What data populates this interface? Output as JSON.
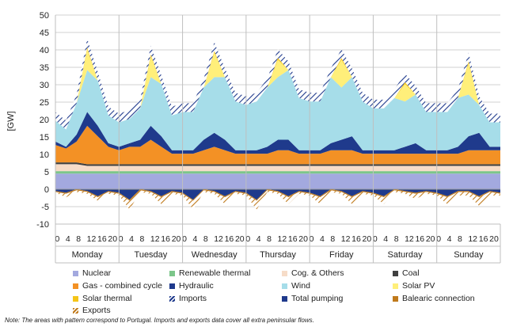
{
  "chart_data": {
    "type": "area",
    "ylabel": "[GW]",
    "ylim": [
      -10,
      50
    ],
    "yticks": [
      -10,
      -5,
      0,
      5,
      10,
      15,
      20,
      25,
      30,
      35,
      40,
      45,
      50
    ],
    "grid": true,
    "legend_position": "bottom",
    "days": [
      "Monday",
      "Tuesday",
      "Wednesday",
      "Thursday",
      "Friday",
      "Saturday",
      "Sunday"
    ],
    "hour_labels": [
      "0",
      "4",
      "8",
      "12",
      "16",
      "20"
    ],
    "x": [
      0,
      4,
      8,
      12,
      16,
      20,
      24,
      28,
      32,
      36,
      40,
      44,
      48,
      52,
      56,
      60,
      64,
      68,
      72,
      76,
      80,
      84,
      88,
      92,
      96,
      100,
      104,
      108,
      112,
      116,
      120,
      124,
      128,
      132,
      136,
      140,
      144,
      148,
      152,
      156,
      160,
      164,
      168
    ],
    "series": [
      {
        "name": "Nuclear",
        "color": "#a3a9df",
        "values": [
          4.5,
          4.5,
          4.5,
          4.5,
          4.5,
          4.5,
          4.5,
          4.5,
          4.5,
          4.5,
          4.5,
          4.5,
          4.5,
          4.5,
          4.5,
          4.5,
          4.5,
          4.5,
          4.5,
          4.5,
          4.5,
          4.5,
          4.5,
          4.5,
          4.5,
          4.5,
          4.5,
          4.5,
          4.5,
          4.5,
          4.5,
          4.5,
          4.5,
          4.5,
          4.5,
          4.5,
          4.5,
          4.5,
          4.5,
          4.5,
          4.5,
          4.5,
          4.5
        ]
      },
      {
        "name": "Renewable thermal",
        "color": "#7cc68a",
        "values": [
          0.7,
          0.7,
          0.7,
          0.7,
          0.7,
          0.7,
          0.7,
          0.7,
          0.7,
          0.7,
          0.7,
          0.7,
          0.7,
          0.7,
          0.7,
          0.7,
          0.7,
          0.7,
          0.7,
          0.7,
          0.7,
          0.7,
          0.7,
          0.7,
          0.7,
          0.7,
          0.7,
          0.7,
          0.7,
          0.7,
          0.7,
          0.7,
          0.7,
          0.7,
          0.7,
          0.7,
          0.7,
          0.7,
          0.7,
          0.7,
          0.7,
          0.7,
          0.7
        ]
      },
      {
        "name": "Cog. & Others",
        "color": "#f6dcc8",
        "values": [
          2.0,
          2.0,
          2.0,
          1.5,
          1.5,
          1.5,
          1.5,
          1.5,
          1.5,
          1.5,
          1.5,
          1.5,
          1.5,
          1.5,
          1.5,
          1.5,
          1.5,
          1.5,
          1.5,
          1.5,
          1.5,
          1.5,
          1.5,
          1.5,
          1.5,
          1.5,
          1.5,
          1.5,
          1.5,
          1.5,
          1.5,
          1.5,
          1.5,
          1.5,
          1.5,
          1.5,
          1.5,
          1.5,
          1.5,
          1.5,
          1.5,
          1.5,
          1.5
        ]
      },
      {
        "name": "Coal",
        "color": "#404040",
        "values": [
          0.5,
          0.5,
          0.5,
          0.5,
          0.5,
          0.5,
          0.5,
          0.5,
          0.5,
          0.5,
          0.5,
          0.5,
          0.5,
          0.5,
          0.5,
          0.5,
          0.5,
          0.5,
          0.5,
          0.5,
          0.5,
          0.5,
          0.5,
          0.5,
          0.5,
          0.5,
          0.5,
          0.5,
          0.5,
          0.5,
          0.5,
          0.5,
          0.5,
          0.5,
          0.5,
          0.5,
          0.5,
          0.5,
          0.5,
          0.5,
          0.5,
          0.5,
          0.5
        ]
      },
      {
        "name": "Gas - combined cycle",
        "color": "#f39125",
        "values": [
          5,
          4,
          6,
          11,
          8,
          5,
          4,
          5,
          5,
          7,
          5,
          3,
          3,
          3,
          4,
          5,
          4,
          3,
          3,
          3,
          3,
          4,
          4,
          3,
          3,
          3,
          4,
          4,
          4,
          3,
          3,
          3,
          3,
          3,
          3,
          3,
          3,
          3,
          3,
          4,
          4,
          4,
          4
        ]
      },
      {
        "name": "Hydraulic",
        "color": "#1f3a8c",
        "values": [
          1,
          0.5,
          2,
          4,
          3,
          1,
          1,
          1,
          2,
          4,
          3,
          1,
          1,
          1,
          3,
          4,
          3,
          1,
          1,
          1,
          2,
          3,
          3,
          1,
          1,
          1,
          2,
          3,
          4,
          1,
          1,
          1,
          1,
          2,
          3,
          1,
          1,
          1,
          2,
          4,
          5,
          1,
          1
        ]
      },
      {
        "name": "Wind",
        "color": "#a6dde9",
        "values": [
          6,
          5,
          9,
          12,
          13,
          8,
          7,
          7,
          9,
          14,
          15,
          10,
          11,
          11,
          15,
          16,
          18,
          14,
          13,
          14,
          17,
          18,
          20,
          15,
          14,
          14,
          19,
          15,
          17,
          14,
          12,
          12,
          15,
          13,
          14,
          11,
          11,
          11,
          14,
          12,
          8,
          7,
          7
        ]
      },
      {
        "name": "Solar PV",
        "color": "#ffef7a",
        "values": [
          0,
          0,
          0,
          6,
          0,
          0,
          0,
          0,
          0,
          6,
          0,
          0,
          0,
          0,
          0,
          7,
          0,
          0,
          0,
          0,
          0,
          5,
          0,
          0,
          0,
          0,
          0,
          8,
          0,
          0,
          0,
          0,
          0,
          5,
          0,
          0,
          0,
          0,
          0,
          9,
          0,
          0,
          0
        ]
      },
      {
        "name": "Solar thermal",
        "color": "#f5c518",
        "values": [
          0,
          0,
          0,
          0.5,
          0,
          0,
          0,
          0,
          0,
          0.5,
          0,
          0,
          0,
          0,
          0,
          0.5,
          0,
          0,
          0,
          0,
          0,
          0.5,
          0,
          0,
          0,
          0,
          0,
          0.5,
          0,
          0,
          0,
          0,
          0,
          0.5,
          0,
          0,
          0,
          0,
          0,
          0.5,
          0,
          0,
          0
        ]
      },
      {
        "name": "Imports",
        "color": "#1f3a8c",
        "values": [
          2.5,
          2.5,
          2.5,
          2.5,
          2.5,
          2.5,
          2.5,
          2.5,
          2.5,
          2.5,
          2.5,
          2.5,
          2.5,
          2.5,
          2.5,
          2.5,
          2.5,
          2.5,
          2.5,
          2.5,
          2.5,
          2.5,
          2.5,
          2.5,
          2.5,
          2.5,
          2.5,
          2.5,
          2.5,
          2.5,
          2.5,
          2.5,
          2.5,
          2.5,
          2.5,
          2.5,
          2.5,
          2.5,
          2.5,
          2.5,
          2.5,
          2.5,
          2.5
        ]
      },
      {
        "name": "Total pumping",
        "color": "#1f3a8c",
        "values": [
          -0.5,
          -1,
          0,
          -0.5,
          -2,
          -0.5,
          -1,
          -3,
          0,
          -0.5,
          -2,
          -0.5,
          -1,
          -3,
          0,
          -0.5,
          -2,
          -0.5,
          -1,
          -3,
          0,
          -0.5,
          -2,
          -0.5,
          -1,
          -2,
          0,
          -0.5,
          -2,
          -0.5,
          -1,
          -2,
          0,
          -0.5,
          -1,
          -0.5,
          -1,
          -2,
          -0.5,
          -0.5,
          -2,
          -0.5,
          -1
        ]
      },
      {
        "name": "Balearic connection",
        "color": "#c07a1c",
        "values": [
          -0.3,
          -0.3,
          -0.3,
          -0.3,
          -0.3,
          -0.3,
          -0.3,
          -0.3,
          -0.3,
          -0.3,
          -0.3,
          -0.3,
          -0.3,
          -0.3,
          -0.3,
          -0.3,
          -0.3,
          -0.3,
          -0.3,
          -0.3,
          -0.3,
          -0.3,
          -0.3,
          -0.3,
          -0.3,
          -0.3,
          -0.3,
          -0.3,
          -0.3,
          -0.3,
          -0.3,
          -0.3,
          -0.3,
          -0.3,
          -0.3,
          -0.3,
          -0.3,
          -0.3,
          -0.3,
          -0.3,
          -0.3,
          -0.3,
          -0.3
        ]
      },
      {
        "name": "Exports",
        "color": "#c07a1c",
        "values": [
          -0.2,
          -1,
          -0.5,
          -0.5,
          -1,
          -0.5,
          -0.5,
          -2.5,
          -0.5,
          -0.5,
          -2,
          -0.5,
          -0.5,
          -2.5,
          -0.5,
          -0.5,
          -2,
          -0.5,
          -0.5,
          -2.5,
          -0.5,
          -0.5,
          -2,
          -0.5,
          -0.5,
          -2,
          -0.5,
          -0.5,
          -2,
          -0.5,
          -0.5,
          -2,
          -0.5,
          -0.5,
          -1.5,
          -0.5,
          -0.5,
          -2,
          -1,
          -1,
          -2.5,
          -1,
          -0.5
        ]
      }
    ]
  },
  "legend": [
    {
      "label": "Nuclear",
      "color": "#a3a9df",
      "pattern": false
    },
    {
      "label": "Renewable thermal",
      "color": "#7cc68a",
      "pattern": false
    },
    {
      "label": "Cog. & Others",
      "color": "#f6dcc8",
      "pattern": false
    },
    {
      "label": "Coal",
      "color": "#404040",
      "pattern": false
    },
    {
      "label": "Gas - combined cycle",
      "color": "#f39125",
      "pattern": false
    },
    {
      "label": "Hydraulic",
      "color": "#1f3a8c",
      "pattern": false
    },
    {
      "label": "Wind",
      "color": "#a6dde9",
      "pattern": false
    },
    {
      "label": "Solar PV",
      "color": "#ffef7a",
      "pattern": false
    },
    {
      "label": "Solar thermal",
      "color": "#f5c518",
      "pattern": false
    },
    {
      "label": "Imports",
      "color": "#1f3a8c",
      "pattern": true
    },
    {
      "label": "Total pumping",
      "color": "#1f3a8c",
      "pattern": false
    },
    {
      "label": "Balearic connection",
      "color": "#c07a1c",
      "pattern": false
    },
    {
      "label": "Exports",
      "color": "#c07a1c",
      "pattern": true
    }
  ],
  "note": "Note: The areas with pattern correspond to Portugal. Imports and exports data cover all extra peninsular flows."
}
